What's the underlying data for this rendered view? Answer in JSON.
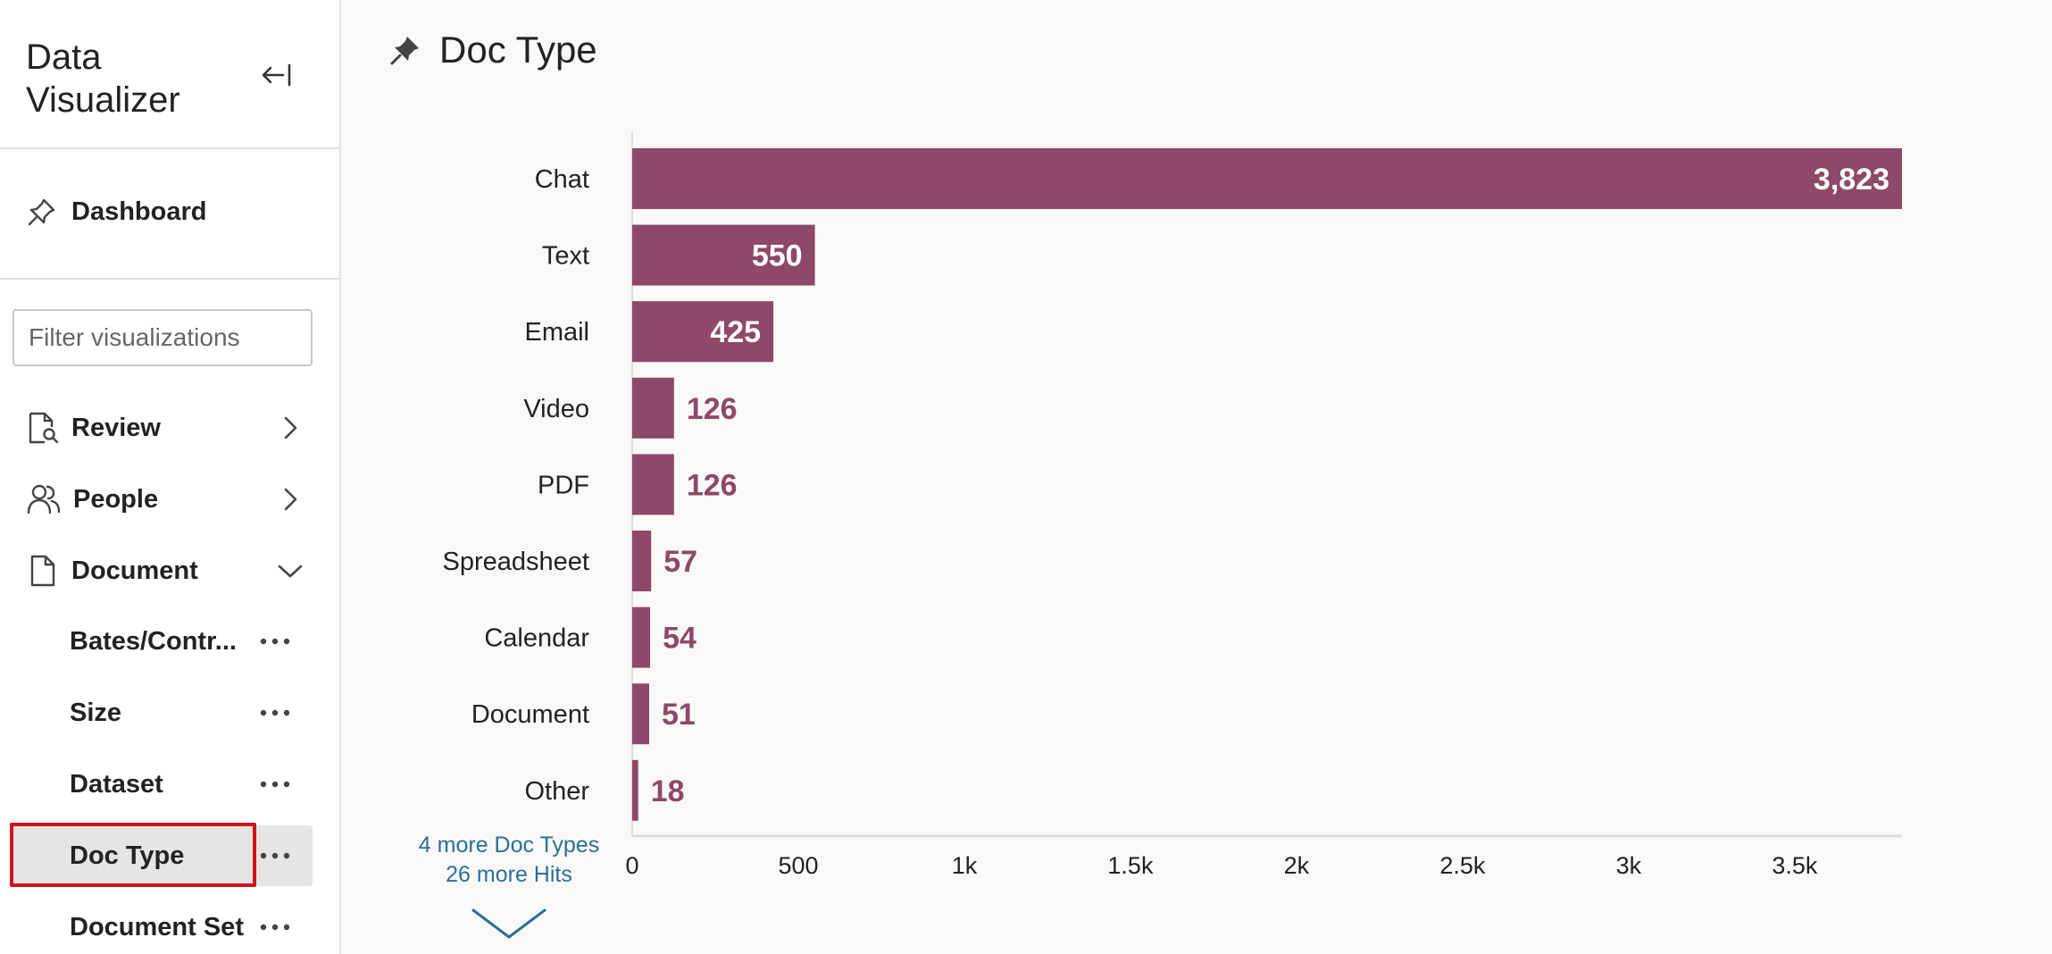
{
  "sidebar": {
    "app_title": "Data Visualizer",
    "dashboard_label": "Dashboard",
    "filter_placeholder": "Filter visualizations",
    "groups": [
      {
        "label": "Review"
      },
      {
        "label": "People"
      },
      {
        "label": "Document"
      }
    ],
    "sub_items": [
      {
        "label": "Bates/Contr..."
      },
      {
        "label": "Size"
      },
      {
        "label": "Dataset"
      },
      {
        "label": "Doc Type"
      },
      {
        "label": "Document Set"
      }
    ]
  },
  "main": {
    "title": "Doc Type",
    "more_types": "4 more Doc Types",
    "more_hits": "26 more Hits"
  },
  "colors": {
    "bar": "#8e4868",
    "link": "#2a6f97",
    "focus": "#d0121b"
  },
  "chart_data": {
    "type": "bar",
    "orientation": "horizontal",
    "categories": [
      "Chat",
      "Text",
      "Email",
      "Video",
      "PDF",
      "Spreadsheet",
      "Calendar",
      "Document",
      "Other"
    ],
    "values": [
      3823,
      550,
      425,
      126,
      126,
      57,
      54,
      51,
      18
    ],
    "value_labels": [
      "3,823",
      "550",
      "425",
      "126",
      "126",
      "57",
      "54",
      "51",
      "18"
    ],
    "xlim": [
      0,
      3823
    ],
    "xticks": [
      0,
      500,
      1000,
      1500,
      2000,
      2500,
      3000,
      3500
    ],
    "xtick_labels": [
      "0",
      "500",
      "1k",
      "1.5k",
      "2k",
      "2.5k",
      "3k",
      "3.5k"
    ],
    "grid": false
  }
}
